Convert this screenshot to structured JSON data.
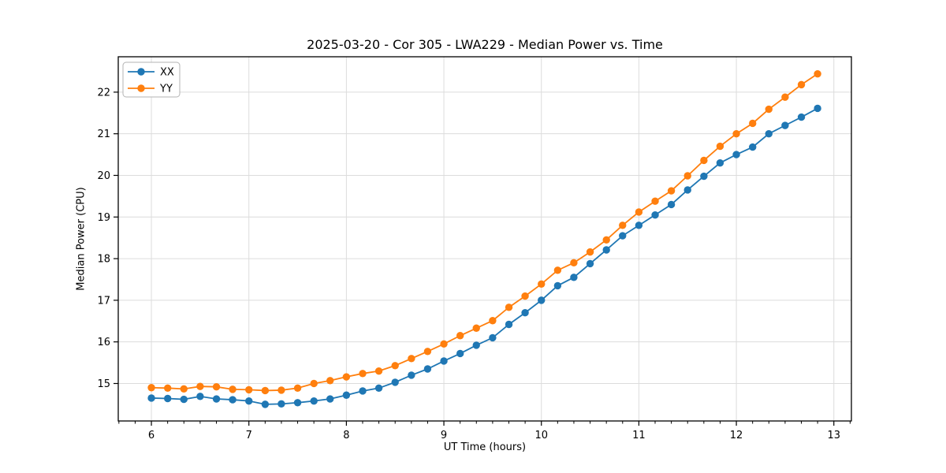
{
  "figure": {
    "title": "2025-03-20 - Cor 305 - LWA229 - Median Power vs. Time",
    "xlabel": "UT Time (hours)",
    "ylabel": "Median Power (CPU)"
  },
  "chart_data": {
    "type": "line",
    "title": "2025-03-20 - Cor 305 - LWA229 - Median Power vs. Time",
    "xlabel": "UT Time (hours)",
    "ylabel": "Median Power (CPU)",
    "xlim": [
      5.66,
      13.18
    ],
    "ylim": [
      14.1,
      22.85
    ],
    "x_ticks": [
      6,
      7,
      8,
      9,
      10,
      11,
      12,
      13
    ],
    "y_ticks": [
      15,
      16,
      17,
      18,
      19,
      20,
      21,
      22
    ],
    "minor_tick_step_x": 0.16667,
    "grid": true,
    "grid_color": "#dcdcdc",
    "legend_position": "upper left",
    "marker": "circle",
    "x": [
      6.0,
      6.167,
      6.333,
      6.5,
      6.667,
      6.833,
      7.0,
      7.167,
      7.333,
      7.5,
      7.667,
      7.833,
      8.0,
      8.167,
      8.333,
      8.5,
      8.667,
      8.833,
      9.0,
      9.167,
      9.333,
      9.5,
      9.667,
      9.833,
      10.0,
      10.167,
      10.333,
      10.5,
      10.667,
      10.833,
      11.0,
      11.167,
      11.333,
      11.5,
      11.667,
      11.833,
      12.0,
      12.167,
      12.333,
      12.5,
      12.667,
      12.833
    ],
    "series": [
      {
        "name": "XX",
        "color": "#1f77b4",
        "values": [
          14.65,
          14.64,
          14.62,
          14.69,
          14.63,
          14.61,
          14.58,
          14.5,
          14.51,
          14.54,
          14.58,
          14.63,
          14.72,
          14.82,
          14.89,
          15.03,
          15.2,
          15.35,
          15.54,
          15.72,
          15.92,
          16.1,
          16.42,
          16.7,
          17.0,
          17.35,
          17.55,
          17.88,
          18.21,
          18.55,
          18.8,
          19.05,
          19.3,
          19.65,
          19.98,
          20.3,
          20.5,
          20.68,
          21.0,
          21.2,
          21.4,
          21.61
        ]
      },
      {
        "name": "YY",
        "color": "#ff7f0e",
        "values": [
          14.9,
          14.89,
          14.87,
          14.93,
          14.92,
          14.86,
          14.85,
          14.83,
          14.84,
          14.89,
          15.0,
          15.07,
          15.16,
          15.24,
          15.3,
          15.43,
          15.6,
          15.77,
          15.95,
          16.15,
          16.33,
          16.51,
          16.83,
          17.1,
          17.39,
          17.72,
          17.9,
          18.16,
          18.45,
          18.8,
          19.12,
          19.38,
          19.63,
          19.99,
          20.36,
          20.7,
          21.0,
          21.25,
          21.59,
          21.88,
          22.18,
          22.44
        ]
      }
    ]
  }
}
